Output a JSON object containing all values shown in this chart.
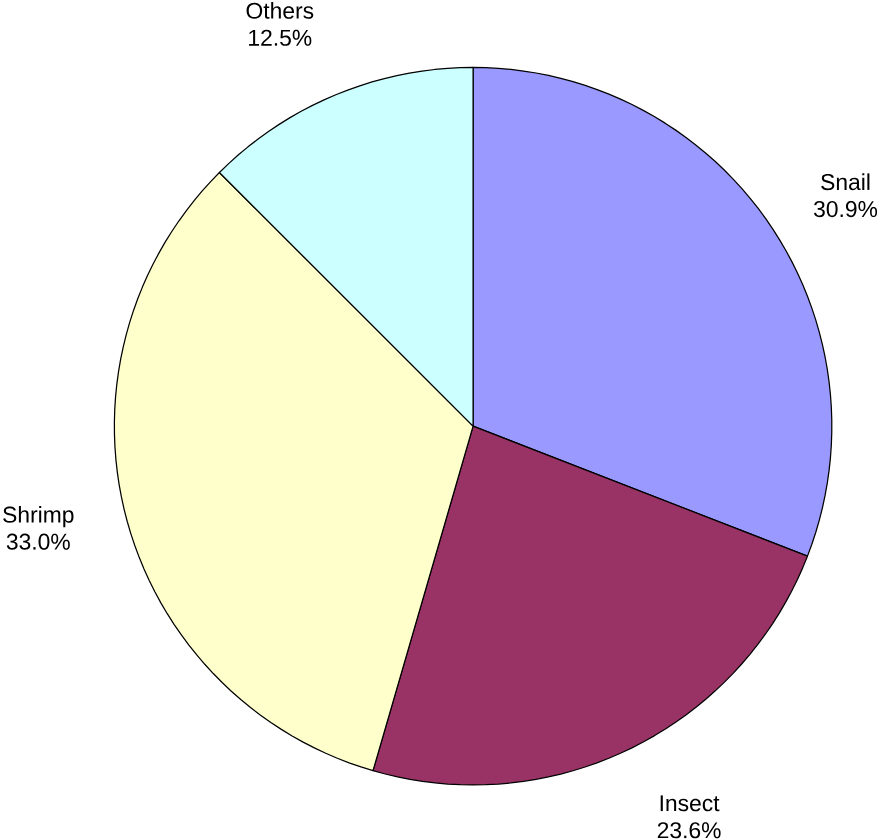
{
  "chart_data": {
    "type": "pie",
    "categories": [
      "Snail",
      "Insect",
      "Shrimp",
      "Others"
    ],
    "values": [
      30.9,
      23.6,
      33.0,
      12.5
    ],
    "colors": [
      "#9999ff",
      "#993366",
      "#ffffcc",
      "#ccffff"
    ],
    "value_labels": [
      "30.9%",
      "23.6%",
      "33.0%",
      "12.5%"
    ]
  }
}
